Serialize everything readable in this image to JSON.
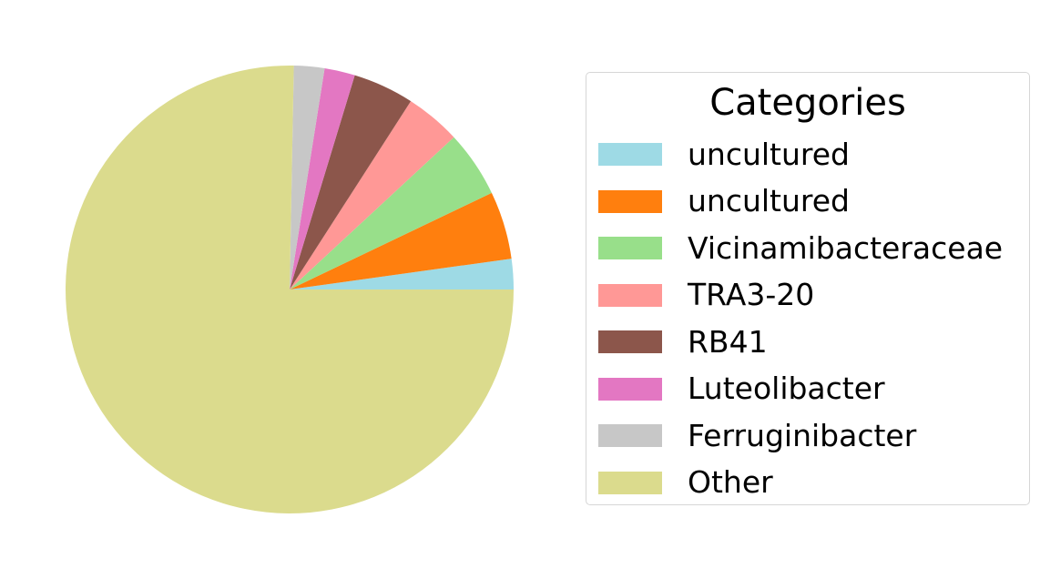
{
  "chart_data": {
    "type": "pie",
    "title": "",
    "start_angle_deg": 0,
    "direction": "counterclockwise",
    "legend": {
      "title": "Categories",
      "placement": "right"
    },
    "slices": [
      {
        "label": "uncultured",
        "value": 2.2,
        "color": "#9edae5"
      },
      {
        "label": "uncultured",
        "value": 4.9,
        "color": "#ff7f0e"
      },
      {
        "label": "Vicinamibacteraceae",
        "value": 4.8,
        "color": "#98df8a"
      },
      {
        "label": "TRA3-20",
        "value": 4.0,
        "color": "#ff9896"
      },
      {
        "label": "RB41",
        "value": 4.4,
        "color": "#8c564b"
      },
      {
        "label": "Luteolibacter",
        "value": 2.2,
        "color": "#e377c2"
      },
      {
        "label": "Ferruginibacter",
        "value": 2.2,
        "color": "#c7c7c7"
      },
      {
        "label": "Other",
        "value": 75.3,
        "color": "#dbdb8d"
      }
    ]
  }
}
